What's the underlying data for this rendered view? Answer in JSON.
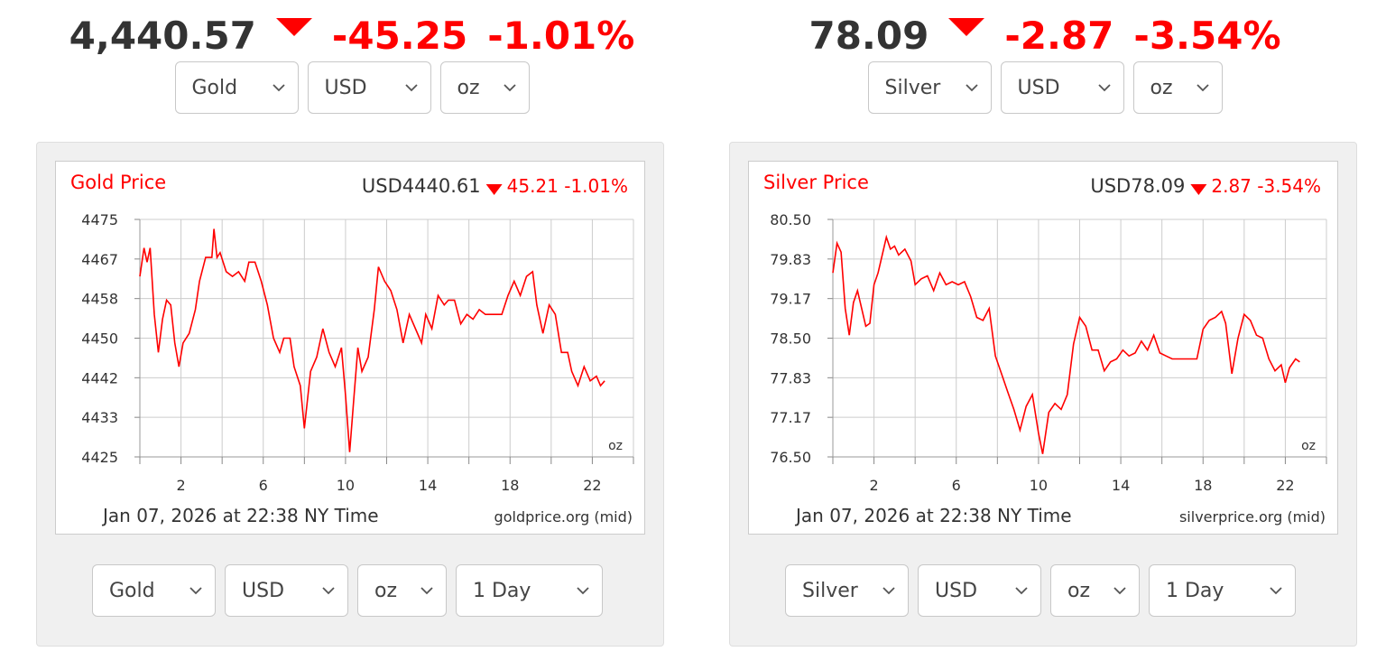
{
  "gold": {
    "quote": {
      "price": "4,440.57",
      "change": "-45.25",
      "percent": "-1.01%"
    },
    "selectors_top": [
      "Gold",
      "USD",
      "oz"
    ],
    "selectors_bottom": [
      "Gold",
      "USD",
      "oz",
      "1 Day"
    ],
    "chart_title": "Gold Price",
    "chart_header_price": "USD4440.61",
    "chart_header_change": "45.21 -1.01%",
    "unit_label": "oz",
    "timestamp": "Jan 07, 2026 at 22:38 NY Time",
    "source": "goldprice.org (mid)"
  },
  "silver": {
    "quote": {
      "price": "78.09",
      "change": "-2.87",
      "percent": "-3.54%"
    },
    "selectors_top": [
      "Silver",
      "USD",
      "oz"
    ],
    "selectors_bottom": [
      "Silver",
      "USD",
      "oz",
      "1 Day"
    ],
    "chart_title": "Silver Price",
    "chart_header_price": "USD78.09",
    "chart_header_change": "2.87 -3.54%",
    "unit_label": "oz",
    "timestamp": "Jan 07, 2026 at 22:38 NY Time",
    "source": "silverprice.org (mid)"
  },
  "colors": {
    "accent_red": "#ff0000",
    "text_dark": "#333333",
    "grid": "#cccccc"
  },
  "chart_data": [
    {
      "type": "line",
      "title": "Gold Price",
      "xlabel": "",
      "ylabel": "",
      "x_ticks": [
        2,
        6,
        10,
        14,
        18,
        22
      ],
      "y_ticks": [
        "4475",
        "4467",
        "4458",
        "4450",
        "4442",
        "4433",
        "4425"
      ],
      "xlim": [
        0,
        24
      ],
      "ylim": [
        4425,
        4475
      ],
      "grid": true,
      "series": [
        {
          "values": [
            [
              0,
              4463
            ],
            [
              0.2,
              4469
            ],
            [
              0.35,
              4466
            ],
            [
              0.5,
              4469
            ],
            [
              0.7,
              4455
            ],
            [
              0.9,
              4447
            ],
            [
              1.1,
              4454
            ],
            [
              1.3,
              4458
            ],
            [
              1.5,
              4457
            ],
            [
              1.7,
              4449
            ],
            [
              1.9,
              4444
            ],
            [
              2.1,
              4449
            ],
            [
              2.4,
              4451
            ],
            [
              2.7,
              4456
            ],
            [
              2.9,
              4462
            ],
            [
              3.2,
              4467
            ],
            [
              3.5,
              4467
            ],
            [
              3.6,
              4473
            ],
            [
              3.75,
              4467
            ],
            [
              3.9,
              4468
            ],
            [
              4.2,
              4464
            ],
            [
              4.5,
              4463
            ],
            [
              4.8,
              4464
            ],
            [
              5.1,
              4462
            ],
            [
              5.3,
              4466
            ],
            [
              5.6,
              4466
            ],
            [
              5.9,
              4462
            ],
            [
              6.2,
              4457
            ],
            [
              6.5,
              4450
            ],
            [
              6.8,
              4447
            ],
            [
              7.0,
              4450
            ],
            [
              7.3,
              4450
            ],
            [
              7.5,
              4444
            ],
            [
              7.8,
              4440
            ],
            [
              8.0,
              4431
            ],
            [
              8.3,
              4443
            ],
            [
              8.6,
              4446
            ],
            [
              8.9,
              4452
            ],
            [
              9.2,
              4447
            ],
            [
              9.5,
              4444
            ],
            [
              9.8,
              4448
            ],
            [
              10.0,
              4438
            ],
            [
              10.2,
              4426
            ],
            [
              10.4,
              4437
            ],
            [
              10.6,
              4448
            ],
            [
              10.8,
              4443
            ],
            [
              11.1,
              4446
            ],
            [
              11.4,
              4456
            ],
            [
              11.6,
              4465
            ],
            [
              11.9,
              4462
            ],
            [
              12.2,
              4460
            ],
            [
              12.5,
              4456
            ],
            [
              12.8,
              4449
            ],
            [
              13.1,
              4455
            ],
            [
              13.4,
              4452
            ],
            [
              13.7,
              4449
            ],
            [
              13.9,
              4455
            ],
            [
              14.2,
              4452
            ],
            [
              14.5,
              4459
            ],
            [
              14.8,
              4457
            ],
            [
              15.0,
              4458
            ],
            [
              15.3,
              4458
            ],
            [
              15.6,
              4453
            ],
            [
              15.9,
              4455
            ],
            [
              16.2,
              4454
            ],
            [
              16.5,
              4456
            ],
            [
              16.8,
              4455
            ],
            [
              17.1,
              4455
            ],
            [
              17.4,
              4455
            ],
            [
              17.6,
              4455
            ],
            [
              17.9,
              4459
            ],
            [
              18.2,
              4462
            ],
            [
              18.5,
              4459
            ],
            [
              18.8,
              4463
            ],
            [
              19.1,
              4464
            ],
            [
              19.3,
              4457
            ],
            [
              19.6,
              4451
            ],
            [
              19.9,
              4457
            ],
            [
              20.2,
              4455
            ],
            [
              20.5,
              4447
            ],
            [
              20.8,
              4447
            ],
            [
              21.0,
              4443
            ],
            [
              21.3,
              4440
            ],
            [
              21.6,
              4444
            ],
            [
              21.9,
              4441
            ],
            [
              22.2,
              4442
            ],
            [
              22.4,
              4440
            ],
            [
              22.6,
              4441
            ]
          ]
        }
      ]
    },
    {
      "type": "line",
      "title": "Silver Price",
      "xlabel": "",
      "ylabel": "",
      "x_ticks": [
        2,
        6,
        10,
        14,
        18,
        22
      ],
      "y_ticks": [
        "80.50",
        "79.83",
        "79.17",
        "78.50",
        "77.83",
        "77.17",
        "76.50"
      ],
      "xlim": [
        0,
        24
      ],
      "ylim": [
        76.5,
        80.5
      ],
      "grid": true,
      "series": [
        {
          "values": [
            [
              0,
              79.6
            ],
            [
              0.2,
              80.1
            ],
            [
              0.4,
              79.95
            ],
            [
              0.6,
              79.0
            ],
            [
              0.8,
              78.55
            ],
            [
              1.0,
              79.1
            ],
            [
              1.2,
              79.3
            ],
            [
              1.4,
              79.0
            ],
            [
              1.6,
              78.7
            ],
            [
              1.8,
              78.75
            ],
            [
              2.0,
              79.4
            ],
            [
              2.2,
              79.6
            ],
            [
              2.4,
              79.9
            ],
            [
              2.6,
              80.2
            ],
            [
              2.8,
              80.0
            ],
            [
              3.0,
              80.05
            ],
            [
              3.2,
              79.9
            ],
            [
              3.5,
              80.0
            ],
            [
              3.8,
              79.8
            ],
            [
              4.0,
              79.4
            ],
            [
              4.3,
              79.5
            ],
            [
              4.6,
              79.55
            ],
            [
              4.9,
              79.3
            ],
            [
              5.2,
              79.6
            ],
            [
              5.5,
              79.4
            ],
            [
              5.8,
              79.45
            ],
            [
              6.1,
              79.4
            ],
            [
              6.4,
              79.45
            ],
            [
              6.7,
              79.2
            ],
            [
              7.0,
              78.85
            ],
            [
              7.3,
              78.8
            ],
            [
              7.6,
              79.0
            ],
            [
              7.9,
              78.2
            ],
            [
              8.2,
              77.9
            ],
            [
              8.5,
              77.6
            ],
            [
              8.8,
              77.3
            ],
            [
              9.1,
              76.95
            ],
            [
              9.4,
              77.35
            ],
            [
              9.7,
              77.55
            ],
            [
              10.0,
              76.9
            ],
            [
              10.2,
              76.55
            ],
            [
              10.5,
              77.25
            ],
            [
              10.8,
              77.4
            ],
            [
              11.1,
              77.3
            ],
            [
              11.4,
              77.55
            ],
            [
              11.7,
              78.4
            ],
            [
              12.0,
              78.85
            ],
            [
              12.3,
              78.7
            ],
            [
              12.6,
              78.3
            ],
            [
              12.9,
              78.3
            ],
            [
              13.2,
              77.95
            ],
            [
              13.5,
              78.1
            ],
            [
              13.8,
              78.15
            ],
            [
              14.1,
              78.3
            ],
            [
              14.4,
              78.2
            ],
            [
              14.7,
              78.25
            ],
            [
              15.0,
              78.45
            ],
            [
              15.3,
              78.3
            ],
            [
              15.6,
              78.55
            ],
            [
              15.9,
              78.25
            ],
            [
              16.2,
              78.2
            ],
            [
              16.5,
              78.15
            ],
            [
              16.8,
              78.15
            ],
            [
              17.1,
              78.15
            ],
            [
              17.4,
              78.15
            ],
            [
              17.7,
              78.15
            ],
            [
              18.0,
              78.65
            ],
            [
              18.3,
              78.8
            ],
            [
              18.6,
              78.85
            ],
            [
              18.9,
              78.95
            ],
            [
              19.1,
              78.75
            ],
            [
              19.4,
              77.9
            ],
            [
              19.7,
              78.5
            ],
            [
              20.0,
              78.9
            ],
            [
              20.3,
              78.8
            ],
            [
              20.6,
              78.55
            ],
            [
              20.9,
              78.5
            ],
            [
              21.2,
              78.15
            ],
            [
              21.5,
              77.95
            ],
            [
              21.8,
              78.05
            ],
            [
              22.0,
              77.75
            ],
            [
              22.2,
              78.0
            ],
            [
              22.5,
              78.15
            ],
            [
              22.7,
              78.1
            ]
          ]
        }
      ]
    }
  ]
}
